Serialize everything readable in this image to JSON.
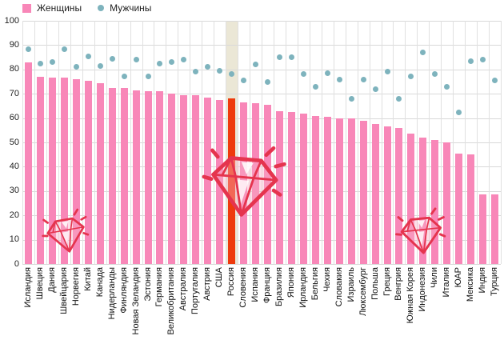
{
  "legend": {
    "women_label": "Женщины",
    "men_label": "Мужчины"
  },
  "colors": {
    "women_bar": "#f887b8",
    "men_dot": "#7eb3bd",
    "highlight_bar": "#ee3a0c",
    "highlight_band": "#ebe7d6",
    "grid_line": "#d9d9d9",
    "text": "#222222",
    "doodle_stroke": "#e5344e"
  },
  "chart_data": {
    "type": "bar",
    "title": "",
    "xlabel": "",
    "ylabel": "",
    "ylim": [
      0,
      100
    ],
    "ytick_step": 10,
    "grid": true,
    "legend_position": "top-left",
    "highlight_category": "Россия",
    "categories": [
      "Исландия",
      "Швеция",
      "Дания",
      "Швейцария",
      "Норвегия",
      "Китай",
      "Канада",
      "Нидерланды",
      "Финляндия",
      "Новая Зеландия",
      "Эстония",
      "Германия",
      "Великобритания",
      "Австралия",
      "Португалия",
      "Австрия",
      "США",
      "Россия",
      "Словения",
      "Испания",
      "Франция",
      "Бразилия",
      "Япония",
      "Ирландия",
      "Бельгия",
      "Чехия",
      "Словакия",
      "Израиль",
      "Люксембург",
      "Польша",
      "Греция",
      "Венгрия",
      "Южная Корея",
      "Индонезия",
      "Чили",
      "Италия",
      "ЮАР",
      "Мексика",
      "Индия",
      "Турция"
    ],
    "series": [
      {
        "name": "Женщины",
        "type": "bar",
        "values": [
          83,
          77,
          76.5,
          76.5,
          76,
          75.5,
          74.5,
          72.5,
          72.5,
          71.5,
          71,
          71,
          70,
          69.5,
          69.5,
          68.5,
          67.5,
          68,
          66.5,
          66,
          65.5,
          63,
          62.5,
          62,
          61,
          60.5,
          60,
          60,
          59,
          57.5,
          56.5,
          56,
          53.5,
          52,
          51,
          50,
          45.5,
          45,
          28.5,
          28.5
        ]
      },
      {
        "name": "Мужчины",
        "type": "scatter",
        "values": [
          88.5,
          82.5,
          83,
          88.5,
          81,
          85.5,
          81.5,
          84.5,
          77,
          84,
          77,
          82.5,
          83,
          84,
          79,
          81,
          79.5,
          78,
          75.5,
          82,
          75,
          85,
          85,
          78,
          73,
          78.5,
          76,
          68,
          76,
          72,
          79,
          68,
          77,
          87,
          78,
          73,
          62.5,
          83.5,
          84,
          75.5
        ]
      }
    ]
  }
}
